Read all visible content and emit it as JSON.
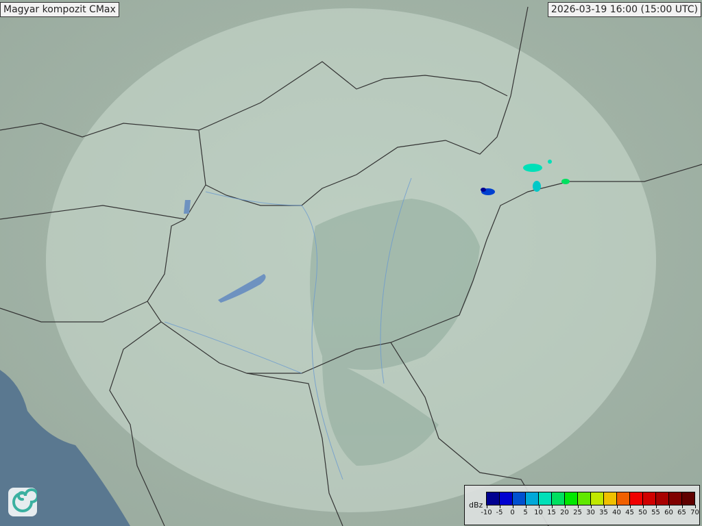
{
  "header": {
    "title": "Magyar kompozit  CMax",
    "timestamp": "2026-03-19 16:00 (15:00 UTC)"
  },
  "legend": {
    "unit": "dBz",
    "ticks": [
      "-10",
      "-5",
      "0",
      "5",
      "10",
      "15",
      "20",
      "25",
      "30",
      "35",
      "40",
      "45",
      "50",
      "55",
      "60",
      "65",
      "70"
    ],
    "colors": [
      "#000090",
      "#0000d0",
      "#0050d0",
      "#00a8d8",
      "#00e0b8",
      "#00e060",
      "#00e800",
      "#60e800",
      "#c0e800",
      "#f0c000",
      "#f06000",
      "#f00000",
      "#d00000",
      "#a80000",
      "#800000",
      "#600000"
    ]
  },
  "map": {
    "land_color": "#a8b8aa",
    "coverage_color": "#c8d8cc",
    "sea_color": "#5a7890",
    "border_color": "#333333",
    "river_color": "#6a9ad0"
  },
  "logo": {
    "icon": "swirl-logo-icon"
  }
}
